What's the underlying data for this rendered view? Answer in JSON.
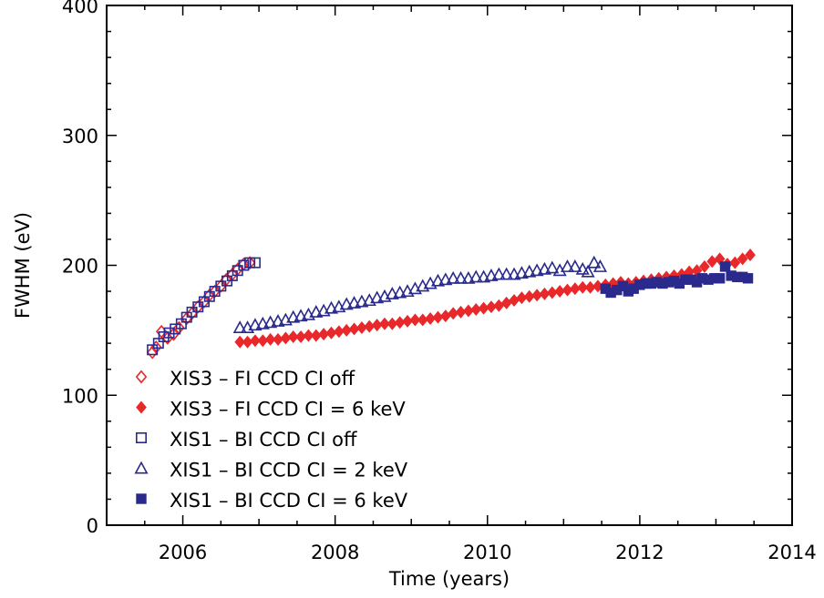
{
  "chart_data": {
    "type": "scatter",
    "title": "",
    "xlabel": "Time (years)",
    "ylabel": "FWHM (eV)",
    "xlim": [
      2005,
      2014
    ],
    "ylim": [
      0,
      400
    ],
    "xticks": [
      2006,
      2008,
      2010,
      2012,
      2014
    ],
    "yticks": [
      0,
      100,
      200,
      300,
      400
    ],
    "grid": false,
    "legend_position": "lower-left",
    "colors": {
      "red": "#e8282b",
      "blue": "#2a2a8c"
    },
    "series": [
      {
        "name": "XIS3 – FI CCD CI off",
        "marker": "diamond-open",
        "color": "#e8282b",
        "points": [
          [
            2005.6,
            133
          ],
          [
            2005.65,
            137
          ],
          [
            2005.72,
            149
          ],
          [
            2005.8,
            144
          ],
          [
            2005.88,
            147
          ],
          [
            2005.95,
            152
          ],
          [
            2006.05,
            159
          ],
          [
            2006.12,
            163
          ],
          [
            2006.2,
            168
          ],
          [
            2006.28,
            172
          ],
          [
            2006.35,
            177
          ],
          [
            2006.42,
            180
          ],
          [
            2006.5,
            184
          ],
          [
            2006.57,
            189
          ],
          [
            2006.65,
            193
          ],
          [
            2006.72,
            197
          ],
          [
            2006.8,
            201
          ],
          [
            2006.88,
            202
          ]
        ]
      },
      {
        "name": "XIS3 – FI CCD CI = 6 keV",
        "marker": "diamond-filled",
        "color": "#e8282b",
        "points": [
          [
            2006.75,
            141
          ],
          [
            2006.85,
            141
          ],
          [
            2006.95,
            142
          ],
          [
            2007.05,
            142
          ],
          [
            2007.15,
            143
          ],
          [
            2007.25,
            143
          ],
          [
            2007.35,
            144
          ],
          [
            2007.45,
            145
          ],
          [
            2007.55,
            145
          ],
          [
            2007.65,
            146
          ],
          [
            2007.75,
            146
          ],
          [
            2007.85,
            147
          ],
          [
            2007.95,
            148
          ],
          [
            2008.05,
            149
          ],
          [
            2008.15,
            150
          ],
          [
            2008.25,
            151
          ],
          [
            2008.35,
            152
          ],
          [
            2008.45,
            153
          ],
          [
            2008.55,
            154
          ],
          [
            2008.65,
            155
          ],
          [
            2008.75,
            155
          ],
          [
            2008.85,
            156
          ],
          [
            2008.95,
            157
          ],
          [
            2009.05,
            158
          ],
          [
            2009.15,
            158
          ],
          [
            2009.25,
            159
          ],
          [
            2009.35,
            160
          ],
          [
            2009.45,
            161
          ],
          [
            2009.55,
            163
          ],
          [
            2009.65,
            164
          ],
          [
            2009.75,
            165
          ],
          [
            2009.85,
            166
          ],
          [
            2009.95,
            167
          ],
          [
            2010.05,
            168
          ],
          [
            2010.15,
            169
          ],
          [
            2010.25,
            171
          ],
          [
            2010.35,
            173
          ],
          [
            2010.45,
            175
          ],
          [
            2010.55,
            176
          ],
          [
            2010.65,
            177
          ],
          [
            2010.75,
            178
          ],
          [
            2010.85,
            179
          ],
          [
            2010.95,
            180
          ],
          [
            2011.05,
            181
          ],
          [
            2011.15,
            182
          ],
          [
            2011.25,
            183
          ],
          [
            2011.35,
            183
          ],
          [
            2011.45,
            184
          ],
          [
            2011.55,
            185
          ],
          [
            2011.65,
            186
          ],
          [
            2011.75,
            187
          ],
          [
            2011.85,
            186
          ],
          [
            2011.95,
            187
          ],
          [
            2012.05,
            188
          ],
          [
            2012.15,
            189
          ],
          [
            2012.25,
            190
          ],
          [
            2012.35,
            191
          ],
          [
            2012.45,
            192
          ],
          [
            2012.55,
            193
          ],
          [
            2012.65,
            195
          ],
          [
            2012.75,
            196
          ],
          [
            2012.85,
            199
          ],
          [
            2012.95,
            203
          ],
          [
            2013.05,
            205
          ],
          [
            2013.15,
            201
          ],
          [
            2013.25,
            202
          ],
          [
            2013.35,
            205
          ],
          [
            2013.45,
            208
          ]
        ]
      },
      {
        "name": "XIS1 – BI CCD CI off",
        "marker": "square-open",
        "color": "#2a2a8c",
        "points": [
          [
            2005.6,
            135
          ],
          [
            2005.68,
            140
          ],
          [
            2005.75,
            145
          ],
          [
            2005.82,
            148
          ],
          [
            2005.9,
            151
          ],
          [
            2005.98,
            155
          ],
          [
            2006.05,
            160
          ],
          [
            2006.12,
            164
          ],
          [
            2006.2,
            168
          ],
          [
            2006.28,
            172
          ],
          [
            2006.35,
            176
          ],
          [
            2006.42,
            180
          ],
          [
            2006.5,
            184
          ],
          [
            2006.58,
            188
          ],
          [
            2006.65,
            192
          ],
          [
            2006.72,
            196
          ],
          [
            2006.8,
            200
          ],
          [
            2006.88,
            202
          ],
          [
            2006.95,
            202
          ]
        ]
      },
      {
        "name": "XIS1 – BI CCD CI = 2 keV",
        "marker": "triangle-open",
        "color": "#2a2a8c",
        "points": [
          [
            2006.75,
            152
          ],
          [
            2006.85,
            152
          ],
          [
            2006.95,
            154
          ],
          [
            2007.05,
            155
          ],
          [
            2007.15,
            156
          ],
          [
            2007.25,
            157
          ],
          [
            2007.35,
            158
          ],
          [
            2007.45,
            160
          ],
          [
            2007.55,
            161
          ],
          [
            2007.65,
            162
          ],
          [
            2007.75,
            164
          ],
          [
            2007.85,
            165
          ],
          [
            2007.95,
            167
          ],
          [
            2008.05,
            168
          ],
          [
            2008.15,
            170
          ],
          [
            2008.25,
            171
          ],
          [
            2008.35,
            172
          ],
          [
            2008.45,
            173
          ],
          [
            2008.55,
            175
          ],
          [
            2008.65,
            176
          ],
          [
            2008.75,
            178
          ],
          [
            2008.85,
            179
          ],
          [
            2008.95,
            180
          ],
          [
            2009.05,
            182
          ],
          [
            2009.15,
            184
          ],
          [
            2009.25,
            186
          ],
          [
            2009.35,
            188
          ],
          [
            2009.45,
            189
          ],
          [
            2009.55,
            190
          ],
          [
            2009.65,
            190
          ],
          [
            2009.75,
            190
          ],
          [
            2009.85,
            191
          ],
          [
            2009.95,
            191
          ],
          [
            2010.05,
            192
          ],
          [
            2010.15,
            193
          ],
          [
            2010.25,
            193
          ],
          [
            2010.35,
            193
          ],
          [
            2010.45,
            194
          ],
          [
            2010.55,
            195
          ],
          [
            2010.65,
            196
          ],
          [
            2010.75,
            197
          ],
          [
            2010.85,
            198
          ],
          [
            2010.95,
            196
          ],
          [
            2011.05,
            199
          ],
          [
            2011.15,
            199
          ],
          [
            2011.25,
            197
          ],
          [
            2011.32,
            195
          ],
          [
            2011.4,
            202
          ],
          [
            2011.48,
            199
          ]
        ]
      },
      {
        "name": "XIS1 – BI CCD CI = 6 keV",
        "marker": "square-filled",
        "color": "#2a2a8c",
        "points": [
          [
            2011.55,
            182
          ],
          [
            2011.62,
            179
          ],
          [
            2011.7,
            181
          ],
          [
            2011.78,
            184
          ],
          [
            2011.85,
            180
          ],
          [
            2011.92,
            182
          ],
          [
            2012.0,
            185
          ],
          [
            2012.08,
            186
          ],
          [
            2012.15,
            186
          ],
          [
            2012.22,
            187
          ],
          [
            2012.3,
            186
          ],
          [
            2012.38,
            187
          ],
          [
            2012.45,
            188
          ],
          [
            2012.52,
            186
          ],
          [
            2012.6,
            189
          ],
          [
            2012.68,
            189
          ],
          [
            2012.75,
            187
          ],
          [
            2012.82,
            190
          ],
          [
            2012.9,
            189
          ],
          [
            2012.98,
            190
          ],
          [
            2013.05,
            190
          ],
          [
            2013.12,
            199
          ],
          [
            2013.2,
            192
          ],
          [
            2013.28,
            191
          ],
          [
            2013.35,
            191
          ],
          [
            2013.42,
            190
          ]
        ]
      }
    ]
  }
}
